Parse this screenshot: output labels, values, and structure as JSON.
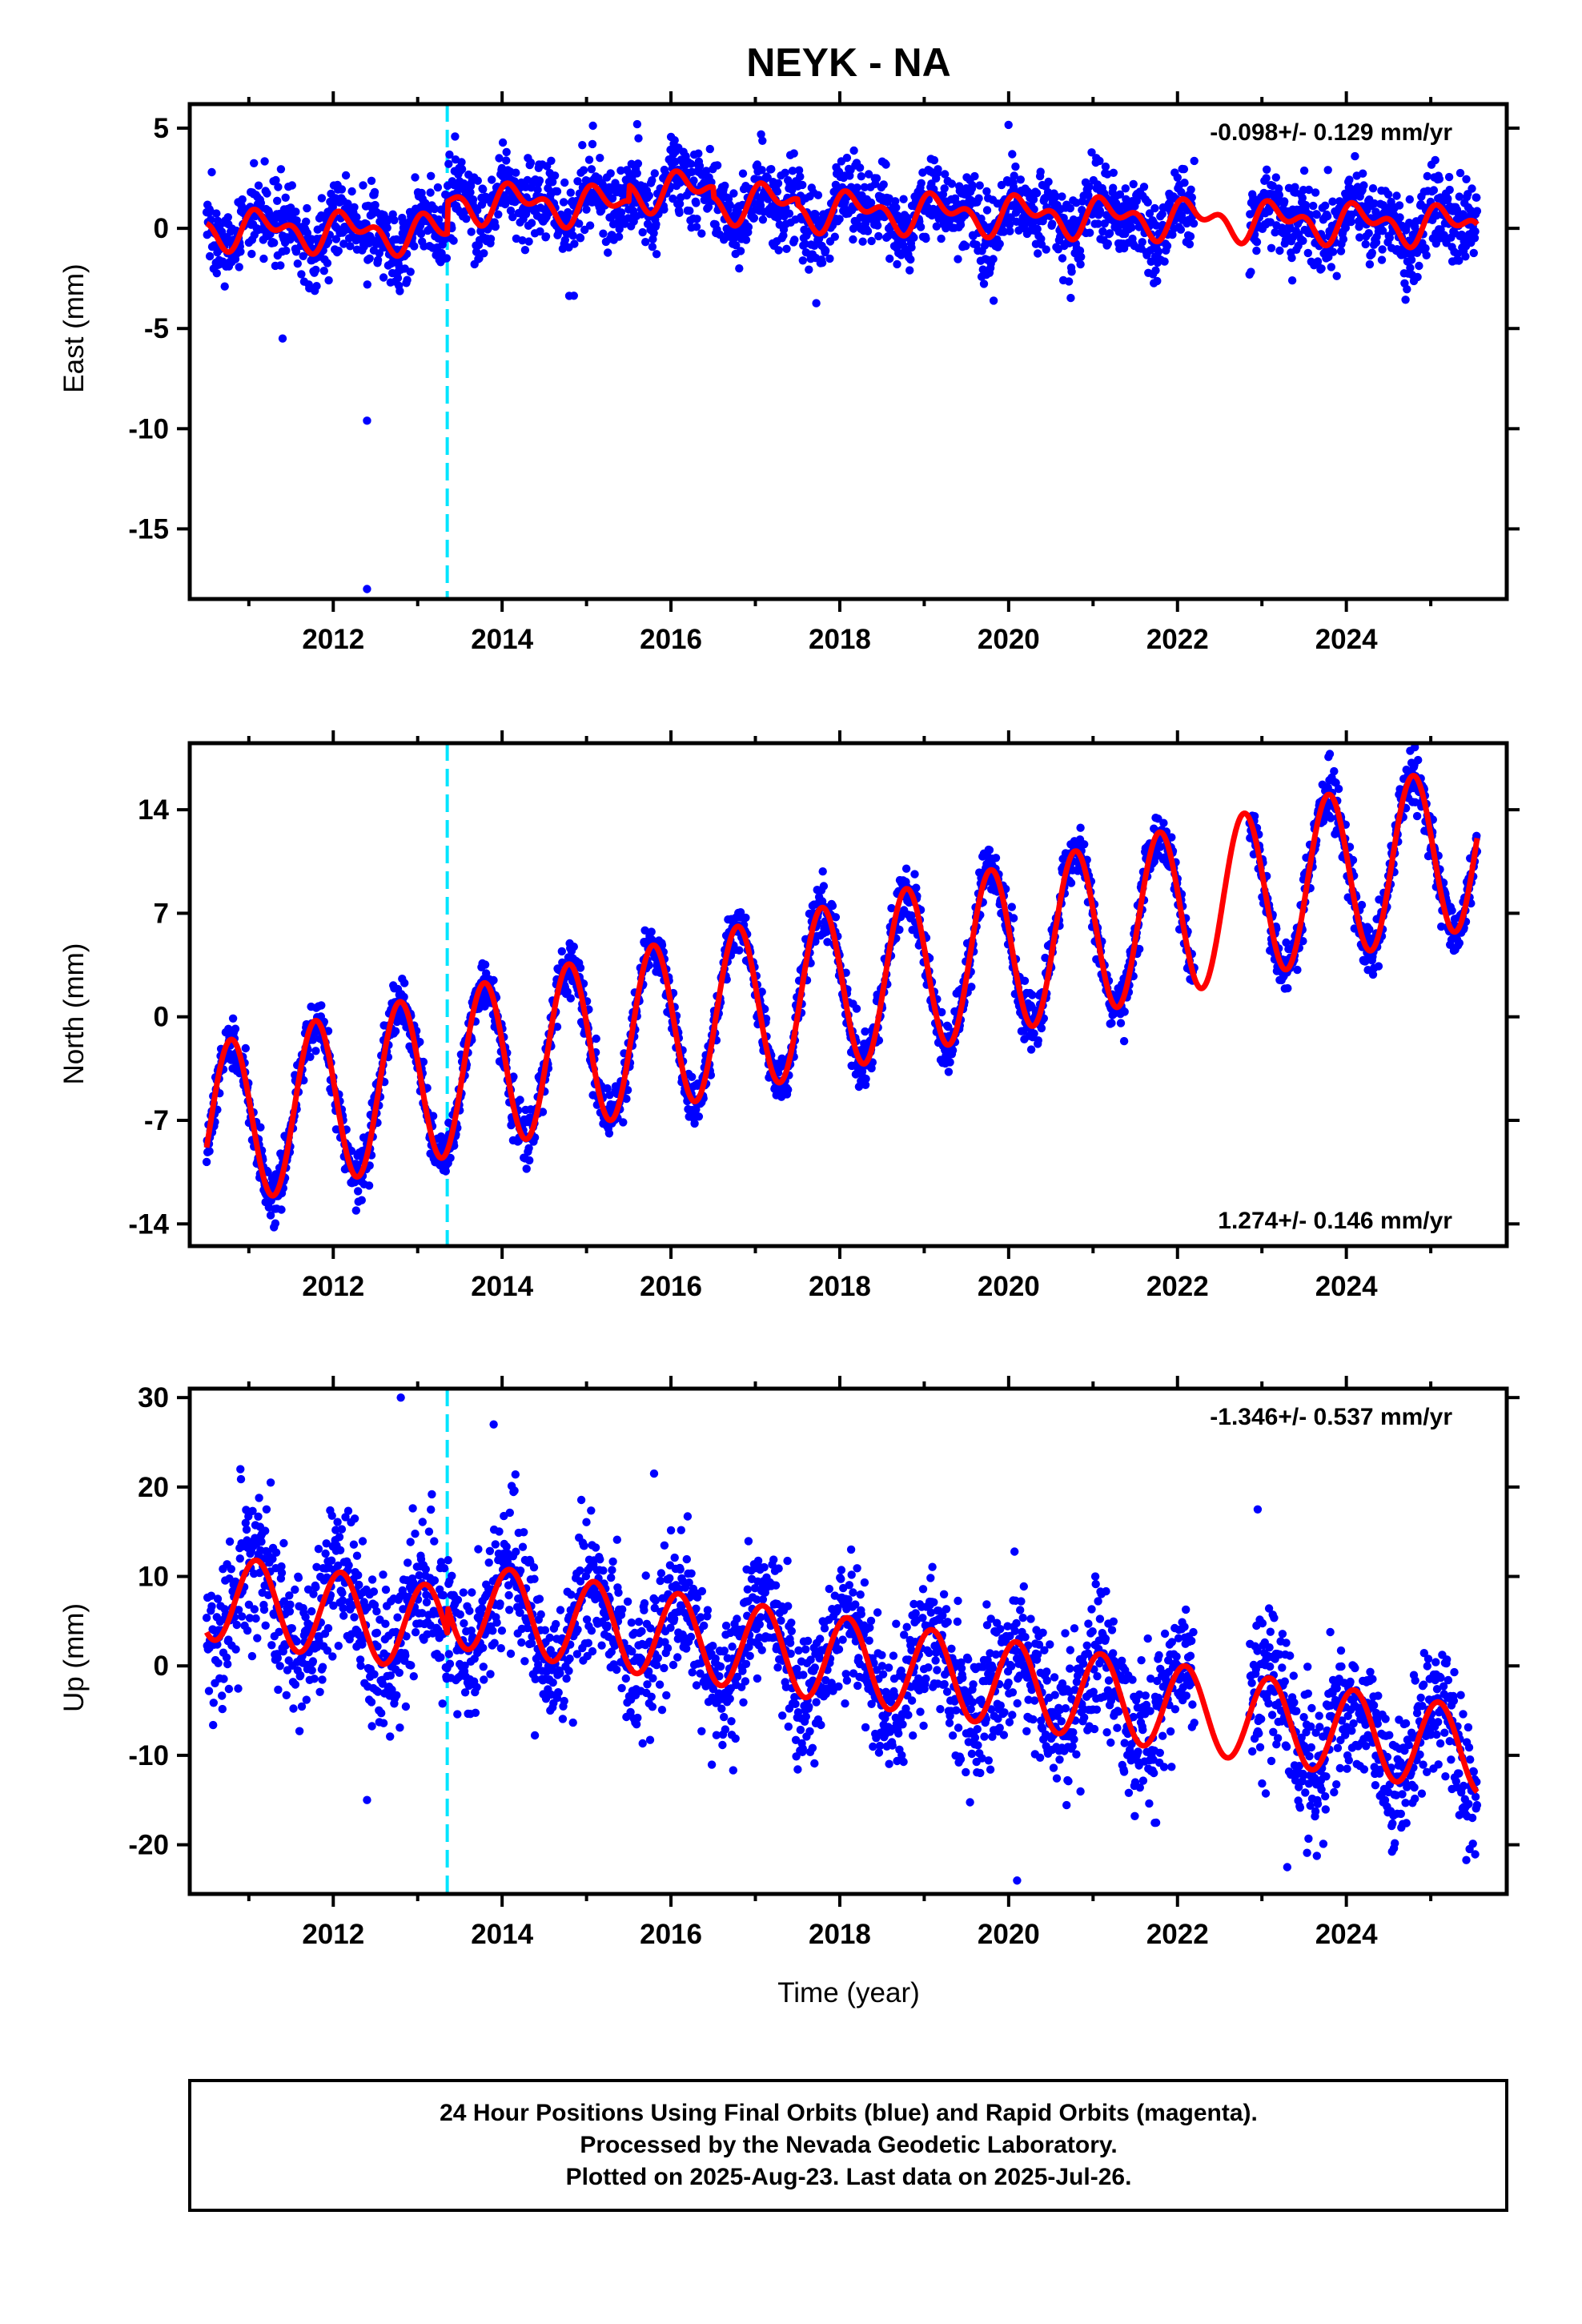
{
  "title": "NEYK - NA",
  "xlabel": "Time (year)",
  "x_tick_labels": [
    "2012",
    "2014",
    "2016",
    "2018",
    "2020",
    "2022",
    "2024"
  ],
  "colors": {
    "points": "#0000ff",
    "fit": "#ff0000",
    "offset_marker": "#00e5ff",
    "frame": "#000000"
  },
  "footer": {
    "line1": "24 Hour Positions Using Final Orbits (blue) and Rapid Orbits (magenta).",
    "line2": "Processed by the Nevada Geodetic Laboratory.",
    "line3": "Plotted on 2025-Aug-23. Last data on 2025-Jul-26."
  },
  "chart_data": [
    {
      "type": "scatter",
      "ylabel": "East (mm)",
      "rate_label": "-0.098+/- 0.129 mm/yr",
      "rate_position": "top-right",
      "xlim": [
        2010.3,
        2025.9
      ],
      "ylim": [
        -18.5,
        6.2
      ],
      "y_ticks": [
        5,
        0,
        -5,
        -10,
        -15
      ],
      "y_tick_labels": [
        "5",
        "0",
        "-5",
        "-10",
        "-15"
      ],
      "x_ticks": [
        2012,
        2014,
        2016,
        2018,
        2020,
        2022,
        2024
      ],
      "offset_marker_year": 2013.35,
      "data_gap": [
        2022.2,
        2022.85
      ],
      "model": {
        "t0": 2010.5,
        "t1": 2025.55,
        "offset": 0.0,
        "rate": -0.098,
        "annual_amp": 0.7,
        "annual_phase": 0.4,
        "semiannual_amp": 0.55,
        "semiannual_phase": 1.2,
        "step_at": 2013.35,
        "step": 1.6,
        "segment_offsets": [
          [
            2015.5,
            0.8
          ],
          [
            2016.5,
            0.3
          ]
        ]
      },
      "scatter_sd": 1.0,
      "outliers": [
        [
          2012.4,
          -9.6
        ],
        [
          2012.4,
          -18.0
        ],
        [
          2011.4,
          -5.5
        ],
        [
          2015.6,
          5.2
        ]
      ],
      "series": [
        {
          "name": "24 hour final orbit positions",
          "color": "#0000ff"
        },
        {
          "name": "model fit",
          "color": "#ff0000"
        }
      ]
    },
    {
      "type": "scatter",
      "ylabel": "North (mm)",
      "rate_label": "1.274+/- 0.146 mm/yr",
      "rate_position": "bottom-right",
      "xlim": [
        2010.3,
        2025.9
      ],
      "ylim": [
        -15.5,
        18.5
      ],
      "y_ticks": [
        14,
        7,
        0,
        -7,
        -14
      ],
      "y_tick_labels": [
        "14",
        "7",
        "0",
        "-7",
        "-14"
      ],
      "x_ticks": [
        2012,
        2014,
        2016,
        2018,
        2020,
        2022,
        2024
      ],
      "offset_marker_year": 2013.35,
      "data_gap": [
        2022.2,
        2022.85
      ],
      "model": {
        "t0": 2010.5,
        "t1": 2025.55,
        "offset": -7.5,
        "rate": 1.274,
        "annual_amp": 5.6,
        "annual_phase": 2.9,
        "semiannual_amp": 0.0,
        "semiannual_phase": 0.0,
        "step_at": 2013.35,
        "step": 0.0,
        "segment_offsets": []
      },
      "scatter_sd": 0.9,
      "outliers": [],
      "series": [
        {
          "name": "24 hour final orbit positions",
          "color": "#0000ff"
        },
        {
          "name": "model fit",
          "color": "#ff0000"
        }
      ]
    },
    {
      "type": "scatter",
      "ylabel": "Up (mm)",
      "rate_label": "-1.346+/- 0.537 mm/yr",
      "rate_position": "top-right",
      "xlim": [
        2010.3,
        2025.9
      ],
      "ylim": [
        -25.5,
        31
      ],
      "y_ticks": [
        30,
        20,
        10,
        0,
        -10,
        -20
      ],
      "y_tick_labels": [
        "30",
        "20",
        "10",
        "0",
        "-10",
        "-20"
      ],
      "x_ticks": [
        2012,
        2014,
        2016,
        2018,
        2020,
        2022,
        2024
      ],
      "offset_marker_year": 2013.35,
      "data_gap": [
        2022.2,
        2022.85
      ],
      "model": {
        "t0": 2010.5,
        "t1": 2025.55,
        "offset": 7.8,
        "rate": -1.346,
        "annual_amp": 4.8,
        "annual_phase": 1.0,
        "semiannual_amp": 0.0,
        "semiannual_phase": 0.0,
        "step_at": 2013.35,
        "step": 3.0,
        "segment_offsets": []
      },
      "scatter_sd": 4.0,
      "outliers": [
        [
          2012.8,
          30
        ],
        [
          2013.9,
          27
        ],
        [
          2010.9,
          22
        ],
        [
          2015.8,
          21.5
        ],
        [
          2022.95,
          17.5
        ],
        [
          2020.1,
          -24
        ],
        [
          2023.3,
          -22.5
        ],
        [
          2012.4,
          -15
        ]
      ],
      "series": [
        {
          "name": "24 hour final orbit positions",
          "color": "#0000ff"
        },
        {
          "name": "model fit",
          "color": "#ff0000"
        }
      ]
    }
  ]
}
